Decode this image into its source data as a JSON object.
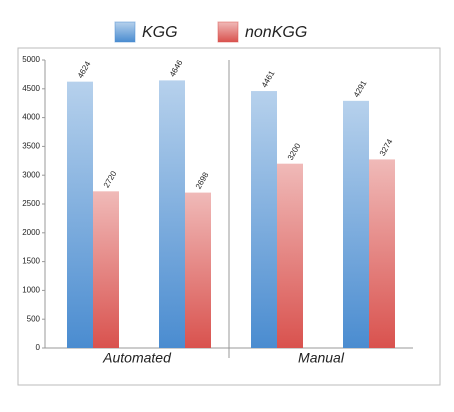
{
  "chart_data": {
    "type": "bar",
    "categories": [
      null,
      null,
      null,
      null
    ],
    "group_labels": [
      "Automated",
      "Manual"
    ],
    "series": [
      {
        "name": "KGG",
        "color": "#4a8cd0",
        "values": [
          4624,
          4646,
          4461,
          4291
        ]
      },
      {
        "name": "nonKGG",
        "color": "#d9524e",
        "values": [
          2720,
          2698,
          3200,
          3274
        ]
      }
    ],
    "ylim": [
      0,
      5000
    ],
    "yticks": [
      0,
      500,
      1000,
      1500,
      2000,
      2500,
      3000,
      3500,
      4000,
      4500,
      5000
    ],
    "grid": false
  }
}
